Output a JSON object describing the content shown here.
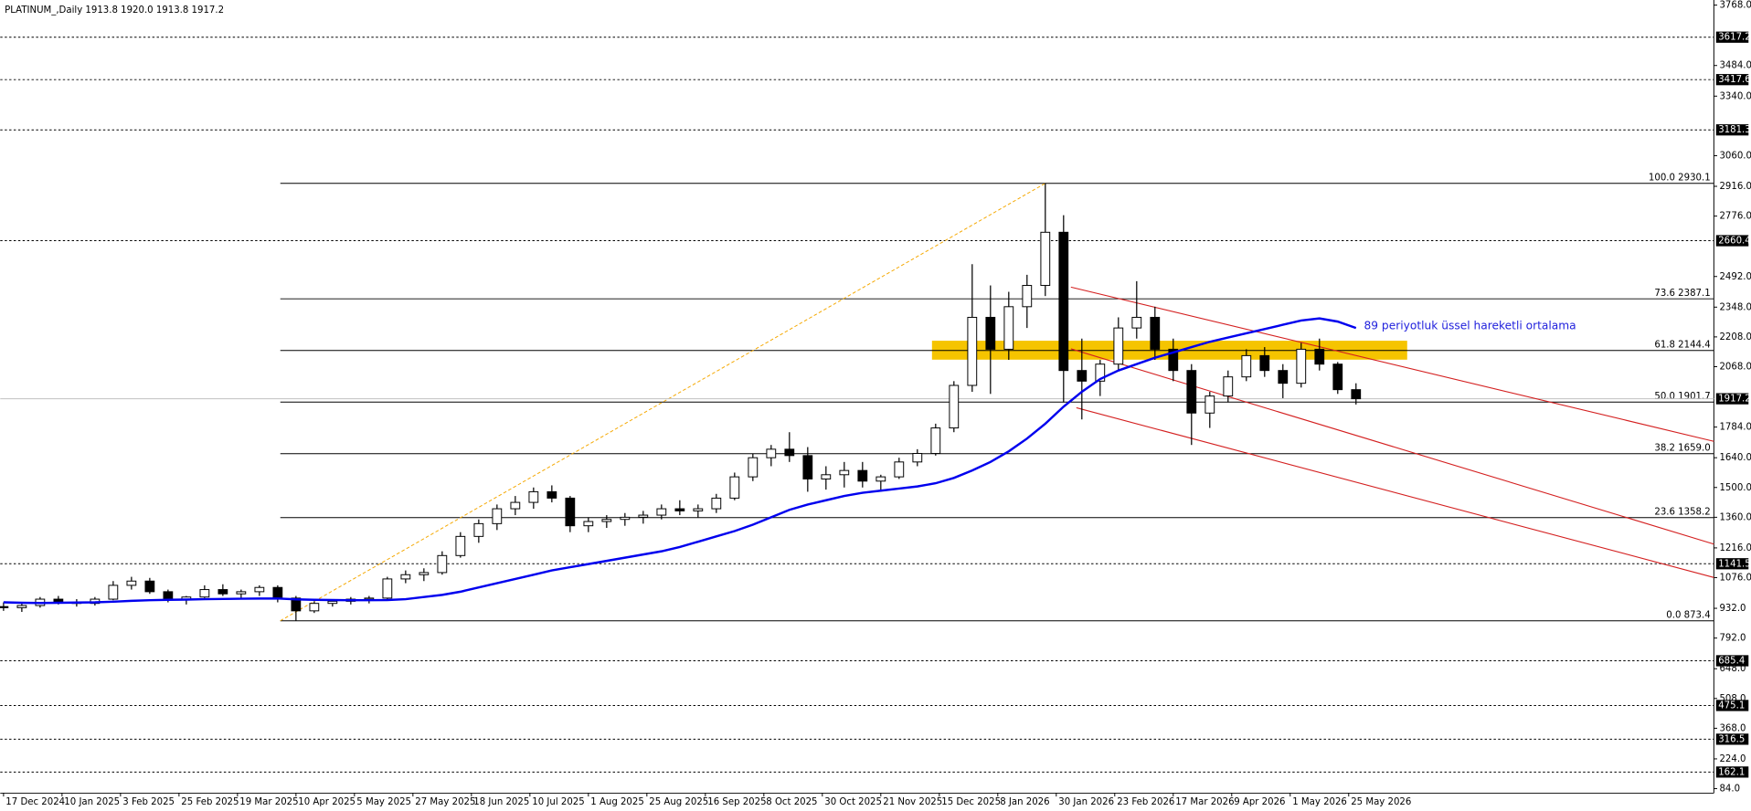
{
  "chart_data": {
    "type": "candlestick",
    "title": "PLATINUM_,Daily  1913.8 1920.0 1913.8 1917.2",
    "annotation": "89 periyotluk üssel hareketli ortalama",
    "annotation_color": "#2222dd",
    "open": [
      940,
      935,
      945,
      975,
      960,
      955,
      975,
      1040,
      1060,
      1010,
      975,
      985,
      1020,
      1000,
      1010,
      1030,
      980,
      920,
      955,
      965,
      975,
      980,
      1070,
      1090,
      1100,
      1180,
      1270,
      1330,
      1400,
      1430,
      1480,
      1450,
      1320,
      1340,
      1350,
      1360,
      1370,
      1400,
      1390,
      1400,
      1450,
      1550,
      1640,
      1680,
      1650,
      1540,
      1560,
      1580,
      1530,
      1550,
      1620,
      1660,
      1780,
      1980,
      2300,
      2150,
      2350,
      2450,
      2700,
      2050,
      2000,
      2080,
      2250,
      2300,
      2150,
      2050,
      1850,
      1930,
      2020,
      2120,
      2050,
      1990,
      2150,
      2080,
      1960
    ],
    "high": [
      960,
      955,
      985,
      990,
      975,
      985,
      1060,
      1080,
      1075,
      1020,
      990,
      1040,
      1045,
      1020,
      1040,
      1040,
      990,
      965,
      975,
      985,
      990,
      1080,
      1110,
      1120,
      1200,
      1290,
      1350,
      1420,
      1460,
      1500,
      1510,
      1460,
      1360,
      1370,
      1380,
      1390,
      1420,
      1440,
      1420,
      1470,
      1570,
      1660,
      1700,
      1760,
      1690,
      1600,
      1620,
      1620,
      1560,
      1640,
      1680,
      1800,
      2000,
      2550,
      2450,
      2420,
      2500,
      2930.1,
      2780,
      2200,
      2100,
      2300,
      2470,
      2350,
      2200,
      2080,
      1950,
      2050,
      2150,
      2160,
      2080,
      2180,
      2200,
      2090,
      1990
    ],
    "low": [
      920,
      915,
      935,
      950,
      940,
      945,
      970,
      1020,
      1000,
      960,
      950,
      980,
      990,
      975,
      990,
      960,
      873.4,
      910,
      940,
      950,
      955,
      975,
      1050,
      1060,
      1090,
      1170,
      1240,
      1300,
      1370,
      1400,
      1430,
      1290,
      1290,
      1310,
      1320,
      1330,
      1350,
      1370,
      1360,
      1380,
      1440,
      1530,
      1600,
      1620,
      1480,
      1490,
      1500,
      1500,
      1480,
      1540,
      1600,
      1650,
      1760,
      1950,
      1940,
      2100,
      2250,
      2400,
      1900,
      1820,
      1930,
      2050,
      2200,
      2100,
      2000,
      1700,
      1780,
      1900,
      2000,
      2020,
      1920,
      1970,
      2050,
      1940,
      1890
    ],
    "close": [
      935,
      945,
      975,
      960,
      955,
      975,
      1040,
      1060,
      1010,
      975,
      985,
      1020,
      1000,
      1010,
      1030,
      980,
      920,
      955,
      965,
      975,
      980,
      1070,
      1090,
      1100,
      1180,
      1270,
      1330,
      1400,
      1430,
      1480,
      1450,
      1320,
      1340,
      1350,
      1360,
      1370,
      1400,
      1390,
      1400,
      1450,
      1550,
      1640,
      1680,
      1650,
      1540,
      1560,
      1580,
      1530,
      1550,
      1620,
      1660,
      1780,
      1980,
      2300,
      2150,
      2350,
      2450,
      2700,
      2050,
      2000,
      2080,
      2250,
      2300,
      2150,
      2050,
      1850,
      1930,
      2020,
      2120,
      2050,
      1990,
      2150,
      2080,
      1960,
      1917.2
    ],
    "ema": {
      "color": "#0000ee",
      "values": [
        960,
        958,
        957,
        958,
        959,
        960,
        963,
        967,
        970,
        972,
        973,
        975,
        976,
        977,
        978,
        978,
        974,
        972,
        971,
        970,
        970,
        971,
        975,
        985,
        995,
        1010,
        1030,
        1050,
        1070,
        1090,
        1110,
        1125,
        1140,
        1155,
        1170,
        1185,
        1200,
        1220,
        1245,
        1270,
        1295,
        1325,
        1360,
        1395,
        1420,
        1440,
        1460,
        1475,
        1485,
        1495,
        1505,
        1520,
        1545,
        1580,
        1620,
        1670,
        1730,
        1800,
        1880,
        1950,
        2010,
        2050,
        2080,
        2110,
        2135,
        2160,
        2185,
        2205,
        2225,
        2245,
        2265,
        2285,
        2295,
        2280,
        2250
      ]
    },
    "xlim": [
      -0.18,
      93.58
    ],
    "xticks": [
      {
        "value": 0,
        "label": "17 Dec 2024"
      },
      {
        "value": 3.2,
        "label": "10 Jan 2025"
      },
      {
        "value": 6.4,
        "label": "3 Feb 2025"
      },
      {
        "value": 9.6,
        "label": "25 Feb 2025"
      },
      {
        "value": 12.8,
        "label": "19 Mar 2025"
      },
      {
        "value": 16,
        "label": "10 Apr 2025"
      },
      {
        "value": 19.2,
        "label": "5 May 2025"
      },
      {
        "value": 22.4,
        "label": "27 May 2025"
      },
      {
        "value": 25.6,
        "label": "18 Jun 2025"
      },
      {
        "value": 28.8,
        "label": "10 Jul 2025"
      },
      {
        "value": 32,
        "label": "1 Aug 2025"
      },
      {
        "value": 35.2,
        "label": "25 Aug 2025"
      },
      {
        "value": 38.4,
        "label": "16 Sep 2025"
      },
      {
        "value": 41.6,
        "label": "8 Oct 2025"
      },
      {
        "value": 44.8,
        "label": "30 Oct 2025"
      },
      {
        "value": 48,
        "label": "21 Nov 2025"
      },
      {
        "value": 51.2,
        "label": "15 Dec 2025"
      },
      {
        "value": 54.4,
        "label": "8 Jan 2026"
      },
      {
        "value": 57.6,
        "label": "30 Jan 2026"
      },
      {
        "value": 60.8,
        "label": "23 Feb 2026"
      },
      {
        "value": 64,
        "label": "17 Mar 2026"
      },
      {
        "value": 67.2,
        "label": "9 Apr 2026"
      },
      {
        "value": 70.4,
        "label": "1 May 2026"
      },
      {
        "value": 73.6,
        "label": "25 May 2026"
      }
    ],
    "ylim": [
      63,
      3792
    ],
    "yticks": [
      {
        "value": 3768,
        "label": "3768.0"
      },
      {
        "value": 3484,
        "label": "3484.0"
      },
      {
        "value": 3340,
        "label": "3340.0"
      },
      {
        "value": 3060,
        "label": "3060.0"
      },
      {
        "value": 2916,
        "label": "2916.0"
      },
      {
        "value": 2776,
        "label": "2776.0"
      },
      {
        "value": 2492,
        "label": "2492.0"
      },
      {
        "value": 2348,
        "label": "2348.0"
      },
      {
        "value": 2208,
        "label": "2208.0"
      },
      {
        "value": 2068,
        "label": "2068.0"
      },
      {
        "value": 1784,
        "label": "1784.0"
      },
      {
        "value": 1640,
        "label": "1640.0"
      },
      {
        "value": 1500,
        "label": "1500.0"
      },
      {
        "value": 1360,
        "label": "1360.0"
      },
      {
        "value": 1216,
        "label": "1216.0"
      },
      {
        "value": 1076,
        "label": "1076.0"
      },
      {
        "value": 932,
        "label": "932.0"
      },
      {
        "value": 792,
        "label": "792.0"
      },
      {
        "value": 648,
        "label": "648.0"
      },
      {
        "value": 508,
        "label": "508.0"
      },
      {
        "value": 368,
        "label": "368.0"
      },
      {
        "value": 224,
        "label": "224.0"
      },
      {
        "value": 84,
        "label": "84.0"
      }
    ],
    "levels": [
      3617.2,
      3417.6,
      3181.3,
      2660.4,
      1141.5,
      685.4,
      475.1,
      316.5,
      162.1
    ],
    "last": 1917.2,
    "fibonacci": [
      {
        "value": 2930.1,
        "label": "100.0 2930.1"
      },
      {
        "value": 2387.1,
        "label": "73.6 2387.1"
      },
      {
        "value": 2144.4,
        "label": "61.8 2144.4"
      },
      {
        "value": 1901.7,
        "label": "50.0 1901.7"
      },
      {
        "value": 1659.0,
        "label": "38.2 1659.0"
      },
      {
        "value": 1358.2,
        "label": "23.6 1358.2"
      },
      {
        "value": 873.4,
        "label": "0.0 873.4"
      }
    ],
    "zone": {
      "color": "#f5c400",
      "x": [
        50.8,
        76.8
      ],
      "y": [
        2101,
        2190
      ]
    },
    "channel_color": "#d42020",
    "channel": [
      {
        "x": [
          58.4,
          93.58
        ],
        "y": [
          2442,
          1717
        ]
      },
      {
        "x": [
          58.4,
          93.58
        ],
        "y": [
          2152,
          1234
        ]
      },
      {
        "x": [
          58.7,
          93.58
        ],
        "y": [
          1875,
          1077
        ]
      }
    ]
  }
}
